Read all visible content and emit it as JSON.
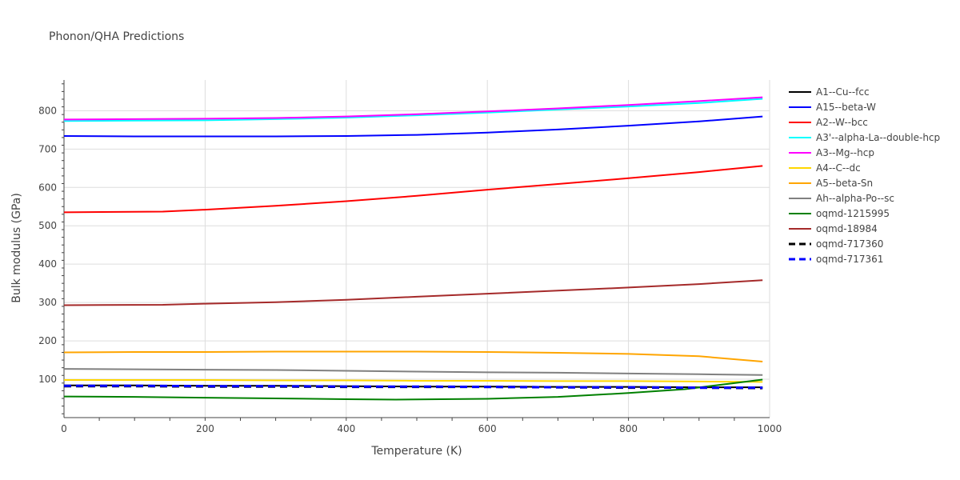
{
  "chart_data": {
    "type": "line",
    "title": "Phonon/QHA Predictions",
    "xlabel": "Temperature (K)",
    "ylabel": "Bulk modulus (GPa)",
    "xlim": [
      0,
      1000
    ],
    "ylim": [
      0,
      880
    ],
    "xticks": [
      0,
      200,
      400,
      600,
      800,
      1000
    ],
    "yticks": [
      100,
      200,
      300,
      400,
      500,
      600,
      700,
      800
    ],
    "grid": true,
    "legend_position": "right",
    "series": [
      {
        "name": "A1--Cu--fcc",
        "color": "#000000",
        "dash": false,
        "x": [
          0,
          100,
          200,
          300,
          400,
          500,
          600,
          700,
          800,
          900,
          990
        ],
        "y": [
          84,
          84,
          83,
          83,
          82,
          81,
          81,
          80,
          80,
          79,
          79
        ]
      },
      {
        "name": "A15--beta-W",
        "color": "#0000ff",
        "dash": false,
        "x": [
          0,
          100,
          200,
          300,
          400,
          500,
          600,
          700,
          800,
          900,
          990
        ],
        "y": [
          734,
          733,
          733,
          733,
          734,
          737,
          743,
          751,
          761,
          772,
          785
        ]
      },
      {
        "name": "A2--W--bcc",
        "color": "#ff0000",
        "dash": false,
        "x": [
          0,
          140,
          200,
          300,
          400,
          500,
          600,
          700,
          800,
          900,
          990
        ],
        "y": [
          535,
          537,
          542,
          552,
          564,
          578,
          594,
          609,
          624,
          640,
          656
        ]
      },
      {
        "name": "A3'--alpha-La--double-hcp",
        "color": "#00ffff",
        "dash": false,
        "x": [
          0,
          100,
          200,
          300,
          400,
          500,
          600,
          700,
          800,
          900,
          990
        ],
        "y": [
          773,
          774,
          775,
          778,
          782,
          788,
          795,
          803,
          811,
          820,
          831
        ]
      },
      {
        "name": "A3--Mg--hcp",
        "color": "#ff00ff",
        "dash": false,
        "x": [
          0,
          100,
          200,
          300,
          400,
          500,
          600,
          700,
          800,
          900,
          990
        ],
        "y": [
          777,
          778,
          779,
          781,
          785,
          791,
          798,
          806,
          815,
          825,
          835
        ]
      },
      {
        "name": "A4--C--dc",
        "color": "#ffd700",
        "dash": false,
        "x": [
          0,
          100,
          200,
          300,
          400,
          500,
          600,
          700,
          800,
          900,
          990
        ],
        "y": [
          98,
          98,
          98,
          97,
          97,
          96,
          96,
          95,
          95,
          94,
          93
        ]
      },
      {
        "name": "A5--beta-Sn",
        "color": "#ffa500",
        "dash": false,
        "x": [
          0,
          100,
          200,
          300,
          400,
          500,
          600,
          700,
          800,
          900,
          990
        ],
        "y": [
          170,
          171,
          171,
          172,
          172,
          172,
          171,
          169,
          166,
          160,
          146
        ]
      },
      {
        "name": "Ah--alpha-Po--sc",
        "color": "#808080",
        "dash": false,
        "x": [
          0,
          100,
          200,
          300,
          400,
          500,
          600,
          700,
          800,
          900,
          990
        ],
        "y": [
          127,
          126,
          125,
          124,
          122,
          120,
          118,
          117,
          115,
          113,
          111
        ]
      },
      {
        "name": "oqmd-1215995",
        "color": "#008000",
        "dash": false,
        "x": [
          0,
          100,
          200,
          300,
          400,
          470,
          600,
          700,
          800,
          880,
          990
        ],
        "y": [
          55,
          54,
          52,
          50,
          48,
          47,
          49,
          54,
          64,
          74,
          99
        ]
      },
      {
        "name": "oqmd-18984",
        "color": "#a52a2a",
        "dash": false,
        "x": [
          0,
          140,
          200,
          300,
          400,
          500,
          600,
          700,
          800,
          900,
          990
        ],
        "y": [
          293,
          294,
          297,
          301,
          307,
          315,
          323,
          331,
          339,
          348,
          358
        ]
      },
      {
        "name": "oqmd-717360",
        "color": "#000000",
        "dash": true,
        "x": [
          0,
          100,
          200,
          300,
          400,
          500,
          600,
          700,
          800,
          900,
          990
        ],
        "y": [
          82,
          82,
          81,
          81,
          80,
          80,
          80,
          79,
          78,
          78,
          77
        ]
      },
      {
        "name": "oqmd-717361",
        "color": "#0000ff",
        "dash": true,
        "x": [
          0,
          100,
          200,
          300,
          400,
          500,
          600,
          700,
          800,
          900,
          990
        ],
        "y": [
          83,
          83,
          82,
          82,
          81,
          81,
          80,
          79,
          79,
          78,
          78
        ]
      }
    ]
  }
}
